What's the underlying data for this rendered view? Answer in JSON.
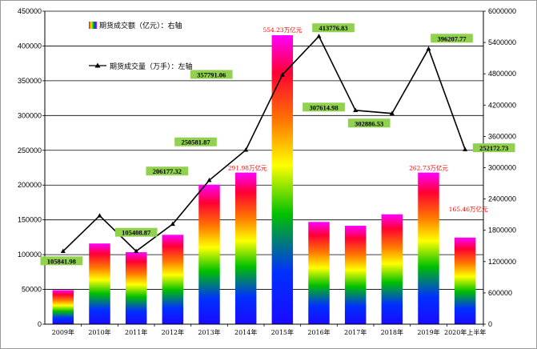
{
  "chart_data": {
    "type": "bar",
    "categories": [
      "2009年",
      "2010年",
      "2011年",
      "2012年",
      "2013年",
      "2014年",
      "2015年",
      "2016年",
      "2017年",
      "2018年",
      "2019年",
      "2020年上半年"
    ],
    "legend": {
      "bar_label": "期货成交额（亿元）：右轴",
      "line_label": "期货成交量（万手）：左轴"
    },
    "left_axis": {
      "min": 0,
      "max": 450000,
      "step": 50000,
      "ticks": [
        "0",
        "50000",
        "100000",
        "150000",
        "200000",
        "250000",
        "300000",
        "350000",
        "400000",
        "450000"
      ]
    },
    "right_axis": {
      "min": 0,
      "max": 6000000,
      "step": 600000,
      "ticks": [
        "0",
        "600000",
        "1200000",
        "1800000",
        "2400000",
        "3000000",
        "3600000",
        "4200000",
        "4800000",
        "5400000",
        "6000000"
      ]
    },
    "series": [
      {
        "name": "期货成交额（亿元）",
        "type": "bar",
        "axis": "left",
        "values": [
          49000,
          116000,
          103500,
          128500,
          200500,
          218000,
          415500,
          147000,
          141500,
          158000,
          218000,
          124500
        ]
      },
      {
        "name": "期货成交量（万手）",
        "type": "line",
        "axis": "right",
        "values": [
          1400000,
          2080000,
          1400000,
          1920000,
          2760000,
          3340000,
          4780000,
          5520000,
          4100000,
          4040000,
          5280000,
          3350000
        ]
      }
    ],
    "green_labels": [
      "105841.98",
      "105408.87",
      "206177.32",
      "250581.87",
      "357791.06",
      "413776.83",
      "307614.98",
      "302886.53",
      "396207.77",
      "252172.73"
    ],
    "red_labels": [
      "291.98万亿元",
      "554.23万亿元",
      "262.73万亿元",
      "165.46万亿元"
    ],
    "colors": {
      "label_box": "#92d050",
      "red_text": "#ff0000",
      "line": "#000000",
      "grid": "#000000"
    }
  }
}
